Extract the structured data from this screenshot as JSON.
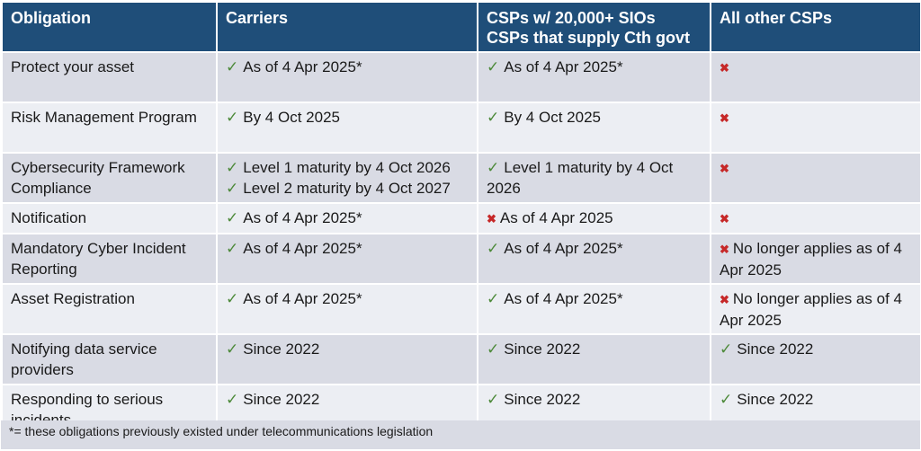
{
  "headers": {
    "obligation": "Obligation",
    "carriers": "Carriers",
    "csps_large_1": "CSPs w/ 20,000+ SIOs",
    "csps_large_2": "CSPs that supply Cth govt",
    "other_csps": "All other CSPs"
  },
  "rows": [
    {
      "obligation": "Protect your asset",
      "carriers": [
        "As of 4 Apr 2025*"
      ],
      "csps": [
        "As of 4 Apr 2025*"
      ],
      "csps_status": "yes",
      "other": "",
      "other_status": "no"
    },
    {
      "obligation": "Risk Management Program",
      "carriers": [
        "By 4 Oct 2025"
      ],
      "csps": [
        "By 4 Oct 2025"
      ],
      "csps_status": "yes",
      "other": "",
      "other_status": "no"
    },
    {
      "obligation": "Cybersecurity Framework Compliance",
      "carriers": [
        "Level 1 maturity by 4 Oct 2026",
        "Level 2 maturity by 4 Oct 2027"
      ],
      "csps": [
        "Level 1 maturity by 4 Oct 2026"
      ],
      "csps_status": "yes",
      "other": "",
      "other_status": "no"
    },
    {
      "obligation": "Notification",
      "carriers": [
        "As of 4 Apr 2025*"
      ],
      "csps": [
        "As of 4 Apr 2025"
      ],
      "csps_status": "no",
      "other": "",
      "other_status": "no"
    },
    {
      "obligation": "Mandatory Cyber Incident Reporting",
      "carriers": [
        "As of 4 Apr 2025*"
      ],
      "csps": [
        "As of 4 Apr 2025*"
      ],
      "csps_status": "yes",
      "other": "No longer applies as of 4 Apr 2025",
      "other_status": "no"
    },
    {
      "obligation": "Asset Registration",
      "carriers": [
        "As of 4 Apr 2025*"
      ],
      "csps": [
        "As of 4 Apr 2025*"
      ],
      "csps_status": "yes",
      "other": "No longer applies as of 4 Apr 2025",
      "other_status": "no"
    },
    {
      "obligation": "Notifying data service providers",
      "carriers": [
        "Since 2022"
      ],
      "csps": [
        "Since 2022"
      ],
      "csps_status": "yes",
      "other": "Since 2022",
      "other_status": "yes"
    },
    {
      "obligation": "Responding to serious incidents",
      "carriers": [
        "Since 2022"
      ],
      "csps": [
        "Since 2022"
      ],
      "csps_status": "yes",
      "other": "Since 2022",
      "other_status": "yes"
    }
  ],
  "footnote": "*= these obligations previously existed under telecommunications legislation",
  "icons": {
    "yes": "check-icon",
    "no": "cross-icon"
  },
  "colors": {
    "header": "#1f4e79",
    "check": "#4d8a3a",
    "cross": "#c62828"
  }
}
